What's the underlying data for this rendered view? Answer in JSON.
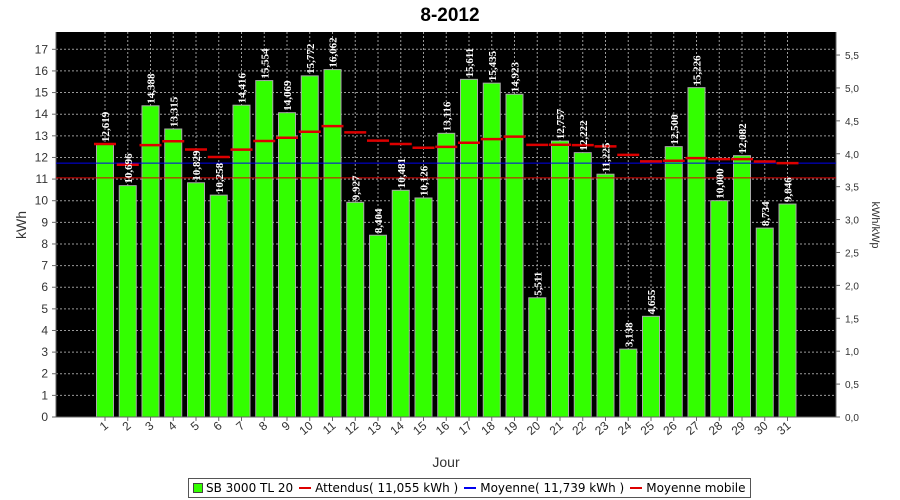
{
  "chart_data": {
    "type": "bar",
    "title": "8-2012",
    "xlabel": "Jour",
    "ylabel": "kWh",
    "y2label": "kWh/kWp",
    "ylim": [
      0,
      17.8
    ],
    "y2lim": [
      0,
      5.85
    ],
    "yticks": [
      "0",
      "1",
      "2",
      "3",
      "4",
      "5",
      "6",
      "7",
      "8",
      "9",
      "10",
      "11",
      "12",
      "13",
      "14",
      "15",
      "16",
      "17"
    ],
    "y2ticks": [
      "0,0",
      "0,5",
      "1,0",
      "1,5",
      "2,0",
      "2,5",
      "3,0",
      "3,5",
      "4,0",
      "4,5",
      "5,0",
      "5,5"
    ],
    "categories": [
      "1",
      "2",
      "3",
      "4",
      "5",
      "6",
      "7",
      "8",
      "9",
      "10",
      "11",
      "12",
      "13",
      "14",
      "15",
      "16",
      "17",
      "18",
      "19",
      "20",
      "21",
      "22",
      "23",
      "24",
      "25",
      "26",
      "27",
      "28",
      "29",
      "30",
      "31"
    ],
    "series": [
      {
        "name": "SB 3000 TL 20",
        "values": [
          12.619,
          10.696,
          14.388,
          13.315,
          10.829,
          10.258,
          14.416,
          15.554,
          14.069,
          15.772,
          16.062,
          9.927,
          8.404,
          10.481,
          10.126,
          13.116,
          15.611,
          15.435,
          14.923,
          5.511,
          12.757,
          12.222,
          11.225,
          3.138,
          4.655,
          12.5,
          15.226,
          10.0,
          12.082,
          8.734,
          9.846
        ],
        "labels": [
          "12,619",
          "10,696",
          "14,388",
          "13,315",
          "10,829",
          "10,258",
          "14,416",
          "15,554",
          "14,069",
          "15,772",
          "16,062",
          "9,927",
          "8,404",
          "10,481",
          "10,126",
          "13,116",
          "15,611",
          "15,435",
          "14,923",
          "5,511",
          "12,757",
          "12,222",
          "11,225",
          "3,138",
          "4,655",
          "12,500",
          "15,226",
          "10,000",
          "12,082",
          "8,734",
          "9,846"
        ],
        "color": "#33ff00"
      },
      {
        "name": "Attendus( 11,055 kWh )",
        "value": 11.055,
        "color": "#dd0000"
      },
      {
        "name": "Moyenne( 11,739 kWh )",
        "value": 11.739,
        "color": "#0000ee"
      },
      {
        "name": "Moyenne mobile",
        "values": [
          12.62,
          11.66,
          12.57,
          12.75,
          12.37,
          12.02,
          12.36,
          12.76,
          12.91,
          13.19,
          13.45,
          13.16,
          12.78,
          12.62,
          12.45,
          12.49,
          12.68,
          12.85,
          12.96,
          12.58,
          12.59,
          12.57,
          12.51,
          12.12,
          11.82,
          11.85,
          11.97,
          11.92,
          11.92,
          11.81,
          11.74
        ],
        "color": "#dd0000"
      }
    ],
    "plot_background": "#000000",
    "grid": true,
    "legend_position": "bottom"
  }
}
